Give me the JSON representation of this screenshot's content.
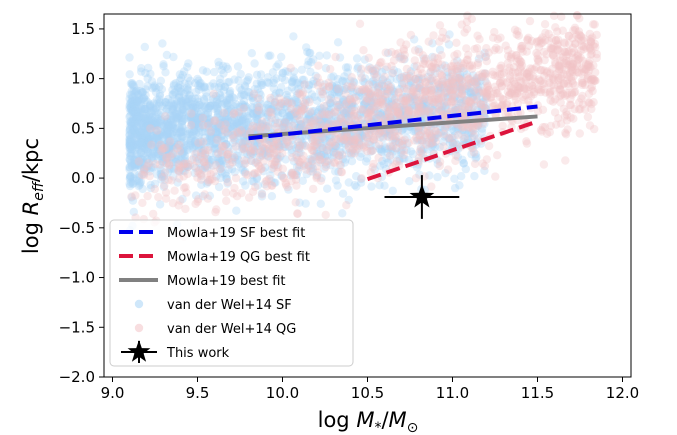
{
  "chart_data": {
    "type": "scatter",
    "xlabel": "log M*/M⊙",
    "ylabel": "log Reff/kpc",
    "xlim": [
      8.95,
      12.05
    ],
    "ylim": [
      -2.0,
      1.65
    ],
    "xticks": [
      "9.0",
      "9.5",
      "10.0",
      "10.5",
      "11.0",
      "11.5",
      "12.0"
    ],
    "yticks": [
      "1.5",
      "1.0",
      "0.5",
      "0.0",
      "−0.5",
      "−1.0",
      "−1.5",
      "−2.0"
    ],
    "xtick_values": [
      9.0,
      9.5,
      10.0,
      10.5,
      11.0,
      11.5,
      12.0
    ],
    "ytick_values": [
      1.5,
      1.0,
      0.5,
      0.0,
      -0.5,
      -1.0,
      -1.5,
      -2.0
    ],
    "grid": false,
    "legend_position": "lower-left",
    "series": [
      {
        "name": "Mowla+19 SF best fit",
        "kind": "line",
        "style": "dashed",
        "color": "#0000ee",
        "x": [
          9.8,
          11.5
        ],
        "y": [
          0.4,
          0.72
        ]
      },
      {
        "name": "Mowla+19 QG best fit",
        "kind": "line",
        "style": "dashed",
        "color": "#dc143c",
        "x": [
          10.5,
          11.5
        ],
        "y": [
          -0.01,
          0.57
        ]
      },
      {
        "name": "Mowla+19 best fit",
        "kind": "line",
        "style": "solid",
        "color": "#808080",
        "x": [
          9.8,
          11.5
        ],
        "y": [
          0.42,
          0.62
        ]
      },
      {
        "name": "van der Wel+14 SF",
        "kind": "scatter",
        "color": "#a8d4f5",
        "cloud": {
          "x_range": [
            9.1,
            11.2
          ],
          "y_center_at_x_min": 0.45,
          "y_slope": 0.1,
          "y_spread": 0.28
        }
      },
      {
        "name": "van der Wel+14 QG",
        "kind": "scatter",
        "color": "#f2c2c6",
        "cloud": {
          "x_range": [
            9.1,
            11.85
          ],
          "y_center_at_x_min": -0.05,
          "y_slope": 0.45,
          "y_spread": 0.3
        }
      },
      {
        "name": "This work",
        "kind": "point",
        "marker": "star",
        "color": "#000000",
        "x": 10.82,
        "y": -0.19,
        "xerr": 0.22,
        "yerr": 0.22
      }
    ]
  }
}
